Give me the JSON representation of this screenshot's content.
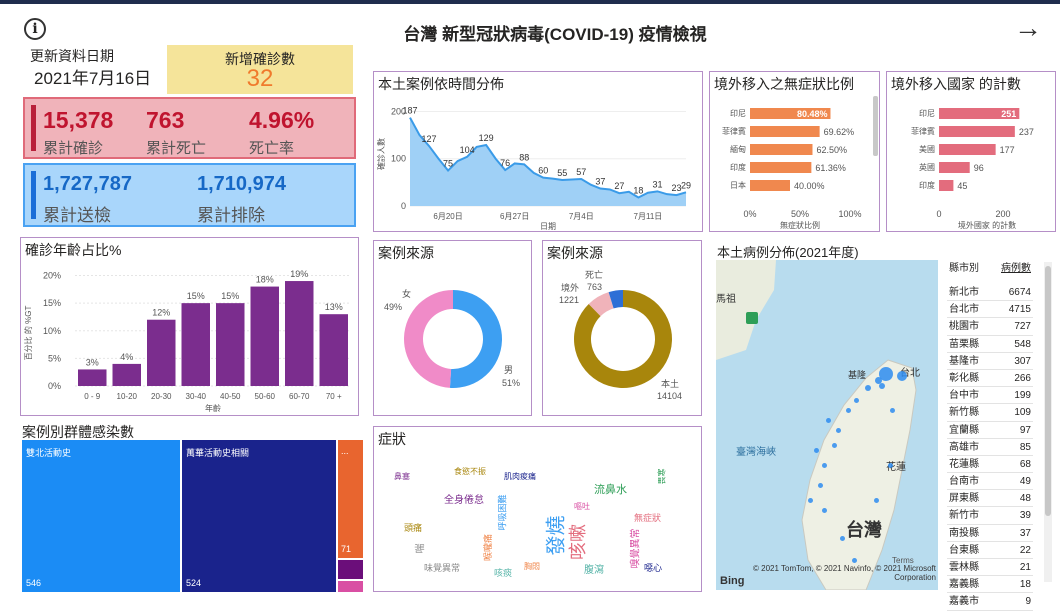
{
  "header": {
    "title": "台灣  新型冠狀病毒(COVID-19) 疫情檢視",
    "info_icon": "i",
    "next_icon": "→"
  },
  "update": {
    "label": "更新資料日期",
    "date": "2021年7月16日"
  },
  "new_cases": {
    "label": "新增確診數",
    "value": "32"
  },
  "summary": {
    "confirmed": "15,378",
    "confirmed_label": "累計確診",
    "deaths": "763",
    "deaths_label": "累計死亡",
    "fatality": "4.96%",
    "fatality_label": "死亡率",
    "tested": "1,727,787",
    "tested_label": "累計送檢",
    "excluded": "1,710,974",
    "excluded_label": "累計排除"
  },
  "timeline": {
    "title": "本土案例依時間分佈",
    "xlabel": "日期",
    "ylabel": "確診人數",
    "xticks": [
      "6月20日",
      "6月27日",
      "7月4日",
      "7月11日"
    ],
    "yticks": [
      "0",
      "100",
      "200"
    ]
  },
  "asym": {
    "title": "境外移入之無症狀比例",
    "xlabel": "無症狀比例",
    "xticks": [
      "0%",
      "50%",
      "100%"
    ]
  },
  "import_country": {
    "title": "境外移入國家 的計數",
    "xlabel": "境外國家 的計數",
    "xticks": [
      "0",
      "200"
    ]
  },
  "age": {
    "title": "確診年齡占比%",
    "xlabel": "年齡",
    "ylabel": "百分比 的 %GT",
    "yticks": [
      "0%",
      "5%",
      "10%",
      "15%",
      "20%"
    ]
  },
  "source1": {
    "title": "案例來源",
    "female_label": "女",
    "female_pct": "49%",
    "male_label": "男",
    "male_pct": "51%"
  },
  "source2": {
    "title": "案例來源",
    "abroad_label": "境外",
    "abroad_val": "1221",
    "death_label": "死亡",
    "death_val": "763",
    "local_label": "本土",
    "local_val": "14104"
  },
  "cluster": {
    "title": "案例別群體感染數",
    "items": [
      {
        "label": "雙北活動史",
        "value": "546"
      },
      {
        "label": "萬華活動史相關",
        "value": "524"
      },
      {
        "label": "...",
        "value": "71"
      }
    ]
  },
  "symptom": {
    "title": "症狀",
    "words": [
      "發燒",
      "咳嗽",
      "全身倦怠",
      "喉嚨痛",
      "流鼻水",
      "頭痛",
      "肌肉痠痛",
      "嗅覺異常",
      "味覺異常",
      "腹瀉",
      "呼吸困難",
      "無症狀",
      "鼻塞",
      "胸悶",
      "畏寒",
      "食慾不振",
      "噁心",
      "嘔吐",
      "喘",
      "咳痰"
    ]
  },
  "map": {
    "title": "本土病例分佈(2021年度)",
    "labels": {
      "taiwan": "台灣",
      "strait": "臺灣海峽",
      "taipei": "台北",
      "hualien": "花蓮",
      "matsu": "馬祖",
      "keelung": "基隆"
    },
    "copyright": "© 2021 TomTom, © 2021 Navinfo, © 2021 Microsoft Corporation",
    "terms": "Terms",
    "bing": "Bing"
  },
  "county_table": {
    "col1": "縣市別",
    "col2": "病例數",
    "rows": [
      [
        "新北市",
        "6674"
      ],
      [
        "台北市",
        "4715"
      ],
      [
        "桃園市",
        "727"
      ],
      [
        "苗栗縣",
        "548"
      ],
      [
        "基隆市",
        "307"
      ],
      [
        "彰化縣",
        "266"
      ],
      [
        "台中市",
        "199"
      ],
      [
        "新竹縣",
        "109"
      ],
      [
        "宜蘭縣",
        "97"
      ],
      [
        "高雄市",
        "85"
      ],
      [
        "花蓮縣",
        "68"
      ],
      [
        "台南市",
        "49"
      ],
      [
        "屏東縣",
        "48"
      ],
      [
        "新竹市",
        "39"
      ],
      [
        "南投縣",
        "37"
      ],
      [
        "台東縣",
        "22"
      ],
      [
        "雲林縣",
        "21"
      ],
      [
        "嘉義縣",
        "18"
      ],
      [
        "嘉義市",
        "9"
      ]
    ]
  },
  "chart_data": [
    {
      "type": "area",
      "title": "本土案例依時間分佈",
      "xlabel": "日期",
      "ylabel": "確診人數",
      "ylim": [
        0,
        220
      ],
      "x": [
        "6/16",
        "6/17",
        "6/18",
        "6/19",
        "6/20",
        "6/21",
        "6/22",
        "6/23",
        "6/24",
        "6/25",
        "6/26",
        "6/27",
        "6/28",
        "6/29",
        "6/30",
        "7/1",
        "7/2",
        "7/3",
        "7/4",
        "7/5",
        "7/6",
        "7/7",
        "7/8",
        "7/9",
        "7/10",
        "7/11",
        "7/12",
        "7/13",
        "7/14",
        "7/15"
      ],
      "values": [
        187,
        150,
        127,
        100,
        75,
        95,
        104,
        125,
        129,
        100,
        76,
        90,
        88,
        70,
        60,
        58,
        55,
        56,
        57,
        45,
        37,
        35,
        27,
        30,
        18,
        28,
        31,
        25,
        23,
        29
      ],
      "labeled": {
        "0": 187,
        "2": 127,
        "4": 75,
        "6": 104,
        "8": 129,
        "10": 76,
        "12": 88,
        "14": 60,
        "16": 55,
        "18": 57,
        "20": 37,
        "22": 27,
        "24": 18,
        "26": 31,
        "28": 23,
        "29": 29
      }
    },
    {
      "type": "bar",
      "title": "境外移入之無症狀比例",
      "categories": [
        "印尼",
        "菲律賓",
        "緬甸",
        "印度",
        "日本"
      ],
      "values": [
        80.48,
        69.62,
        62.5,
        61.36,
        40.0
      ],
      "value_labels": [
        "80.48%",
        "69.62%",
        "62.50%",
        "61.36%",
        "40.00%"
      ],
      "xlim": [
        0,
        100
      ]
    },
    {
      "type": "bar",
      "title": "境外移入國家 的計數",
      "categories": [
        "印尼",
        "菲律賓",
        "美國",
        "英國",
        "印度"
      ],
      "values": [
        251,
        237,
        177,
        96,
        45
      ],
      "xlim": [
        0,
        300
      ]
    },
    {
      "type": "bar",
      "title": "確診年齡占比%",
      "categories": [
        "0 - 9",
        "10-20",
        "20-30",
        "30-40",
        "40-50",
        "50-60",
        "60-70",
        "70 +"
      ],
      "values": [
        3,
        4,
        12,
        15,
        15,
        18,
        19,
        13
      ],
      "value_labels": [
        "3%",
        "4%",
        "12%",
        "15%",
        "15%",
        "18%",
        "19%",
        "13%"
      ],
      "ylim": [
        0,
        21
      ]
    },
    {
      "type": "pie",
      "title": "案例來源",
      "categories": [
        "男",
        "女"
      ],
      "values": [
        51,
        49
      ]
    },
    {
      "type": "pie",
      "title": "案例來源",
      "categories": [
        "本土",
        "境外",
        "死亡"
      ],
      "values": [
        14104,
        1221,
        763
      ]
    }
  ],
  "colors": {
    "accent_red": "#c0142f",
    "accent_blue": "#1668c6",
    "purple": "#7b2d8e",
    "orange": "#f0884e",
    "pink": "#e36c7d",
    "area": "#7cc1f3"
  }
}
